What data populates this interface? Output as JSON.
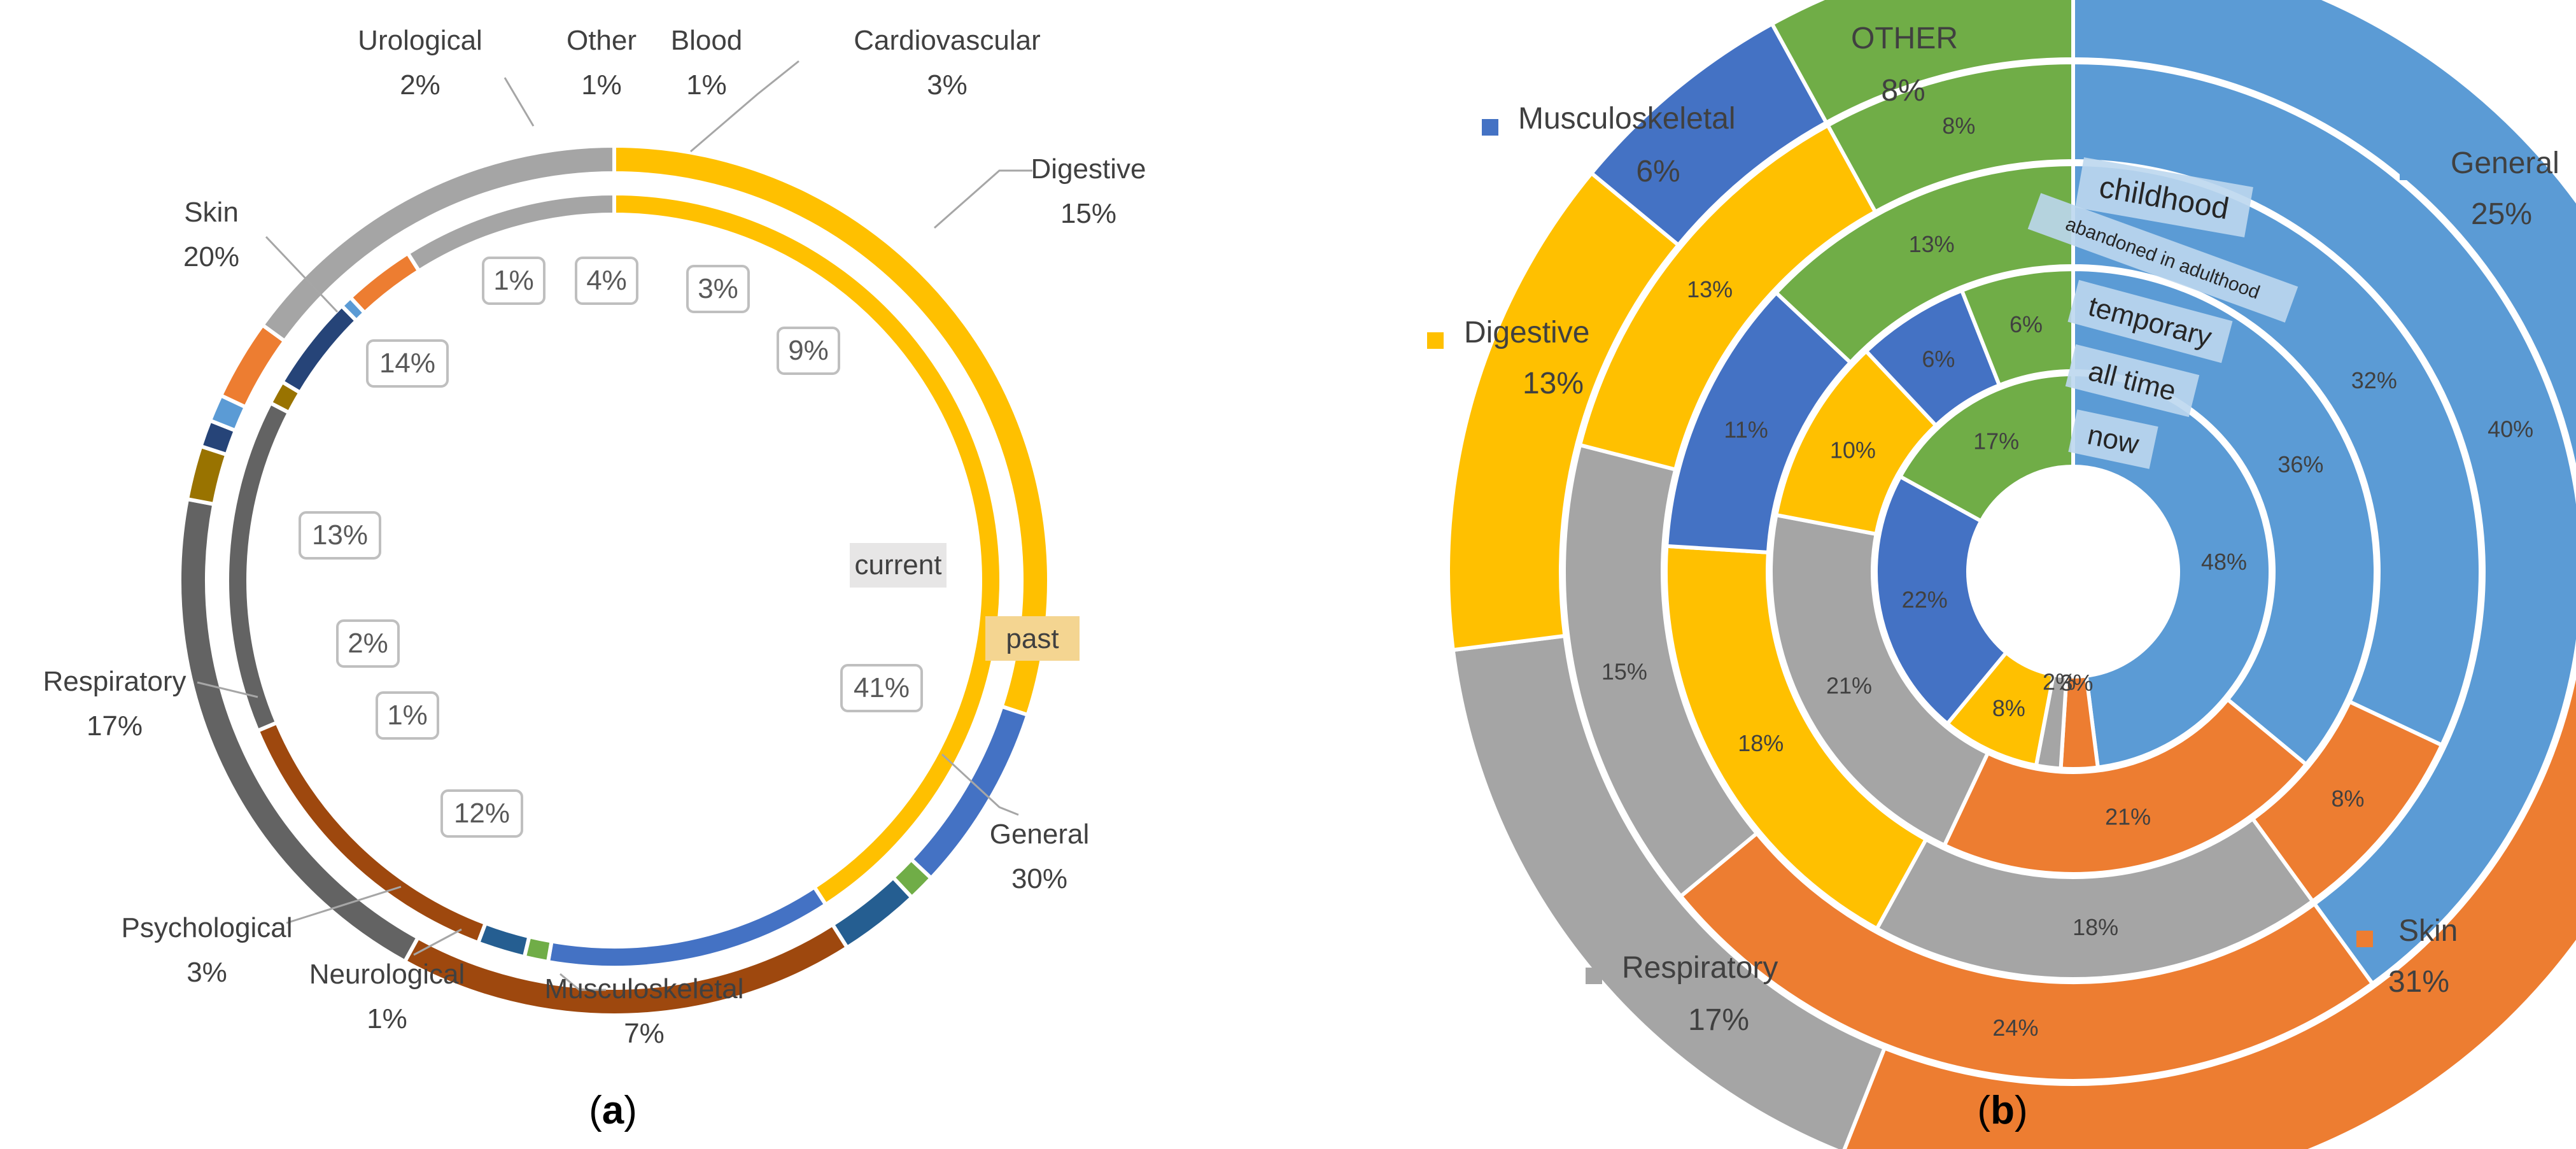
{
  "panel_a": {
    "caption_open": "(",
    "caption_letter": "a",
    "caption_close": ")",
    "ring_labels": {
      "inner": "current",
      "outer": "past"
    }
  },
  "panel_b": {
    "caption_open": "(",
    "caption_letter": "b",
    "caption_close": ")",
    "ring_labels": [
      "childhood",
      "abandoned in adulthood",
      "temporary",
      "all time",
      "now"
    ]
  },
  "chart_data": [
    {
      "type": "pie",
      "subtype": "doughnut",
      "title": "(a)",
      "start_angle_deg": 0,
      "series": [
        {
          "name": "current",
          "categories": [
            "General",
            "Musculoskeletal",
            "Neurological",
            "Psychological",
            "Respiratory",
            "Skin",
            "Urological",
            "Other",
            "Blood",
            "Cardiovascular",
            "Digestive"
          ],
          "values": [
            41,
            12,
            1,
            2,
            13,
            14,
            1,
            4,
            0.5,
            3,
            9
          ],
          "labels": [
            "41%",
            "12%",
            "1%",
            "2%",
            "13%",
            "14%",
            "1%",
            "4%",
            "",
            "3%",
            "9%"
          ]
        },
        {
          "name": "past",
          "categories": [
            "General",
            "Musculoskeletal",
            "Neurological",
            "Psychological",
            "Respiratory",
            "Skin",
            "Urological",
            "Other",
            "Blood",
            "Cardiovascular",
            "Digestive"
          ],
          "values": [
            30,
            7,
            1,
            3,
            17,
            20,
            2,
            1,
            1,
            3,
            15
          ],
          "labels": [
            "General\n30%",
            "Musculoskeletal\n7%",
            "Neurological\n1%",
            "Psychological\n3%",
            "Respiratory\n17%",
            "Skin\n20%",
            "Urological\n2%",
            "Other\n1%",
            "Blood\n1%",
            "Cardiovascular\n3%",
            "Digestive\n15%"
          ]
        }
      ],
      "colors": {
        "General": "#FFC000",
        "Musculoskeletal": "#4472C4",
        "Neurological": "#70AD47",
        "Psychological": "#255E91",
        "Respiratory": "#9E480E",
        "Skin": "#636363",
        "Urological": "#997300",
        "Other": "#264478",
        "Blood": "#5B9BD5",
        "Cardiovascular": "#ED7D31",
        "Digestive": "#A5A5A5"
      },
      "category_labels": [
        {
          "name": "General",
          "pct": "30%"
        },
        {
          "name": "Musculoskeletal",
          "pct": "7%"
        },
        {
          "name": "Neurological",
          "pct": "1%"
        },
        {
          "name": "Psychological",
          "pct": "3%"
        },
        {
          "name": "Respiratory",
          "pct": "17%"
        },
        {
          "name": "Skin",
          "pct": "20%"
        },
        {
          "name": "Urological",
          "pct": "2%"
        },
        {
          "name": "Other",
          "pct": "1%"
        },
        {
          "name": "Blood",
          "pct": "1%"
        },
        {
          "name": "Cardiovascular",
          "pct": "3%"
        },
        {
          "name": "Digestive",
          "pct": "15%"
        }
      ]
    },
    {
      "type": "pie",
      "subtype": "multi-level doughnut",
      "title": "(b)",
      "categories": [
        "General",
        "Skin",
        "Respiratory",
        "Digestive",
        "Musculoskeletal",
        "OTHER"
      ],
      "colors": {
        "General": "#5B9BD5",
        "Skin": "#ED7D31",
        "Respiratory": "#A5A5A5",
        "Digestive": "#FFC000",
        "Musculoskeletal": "#4472C4",
        "OTHER": "#70AD47"
      },
      "series": [
        {
          "name": "now",
          "values": [
            48,
            3,
            2,
            8,
            22,
            17
          ],
          "labels": [
            "48%",
            "3%",
            "2%",
            "8%",
            "22%",
            "17%"
          ]
        },
        {
          "name": "all time",
          "values": [
            36,
            21,
            21,
            10,
            6,
            6
          ],
          "labels": [
            "36%",
            "21%",
            "21%",
            "10%",
            "6%",
            "6%"
          ]
        },
        {
          "name": "temporary",
          "values": [
            32,
            8,
            18,
            18,
            11,
            13
          ],
          "labels": [
            "32%",
            "8%",
            "18%",
            "18%",
            "11%",
            "13%"
          ]
        },
        {
          "name": "abandoned in adulthood",
          "values": [
            40,
            24,
            15,
            13,
            0,
            8
          ],
          "labels": [
            "40%",
            "24%",
            "15%",
            "13%",
            "",
            "8%"
          ]
        },
        {
          "name": "childhood",
          "values": [
            25,
            31,
            17,
            13,
            6,
            8
          ],
          "labels": [
            "",
            "",
            "",
            "",
            "",
            ""
          ]
        }
      ],
      "legend": [
        {
          "name": "General",
          "pct": "25%"
        },
        {
          "name": "Skin",
          "pct": "31%"
        },
        {
          "name": "Respiratory",
          "pct": "17%"
        },
        {
          "name": "Digestive",
          "pct": "13%"
        },
        {
          "name": "Musculoskeletal",
          "pct": "6%"
        },
        {
          "name": "OTHER",
          "pct": "8%"
        }
      ]
    }
  ]
}
